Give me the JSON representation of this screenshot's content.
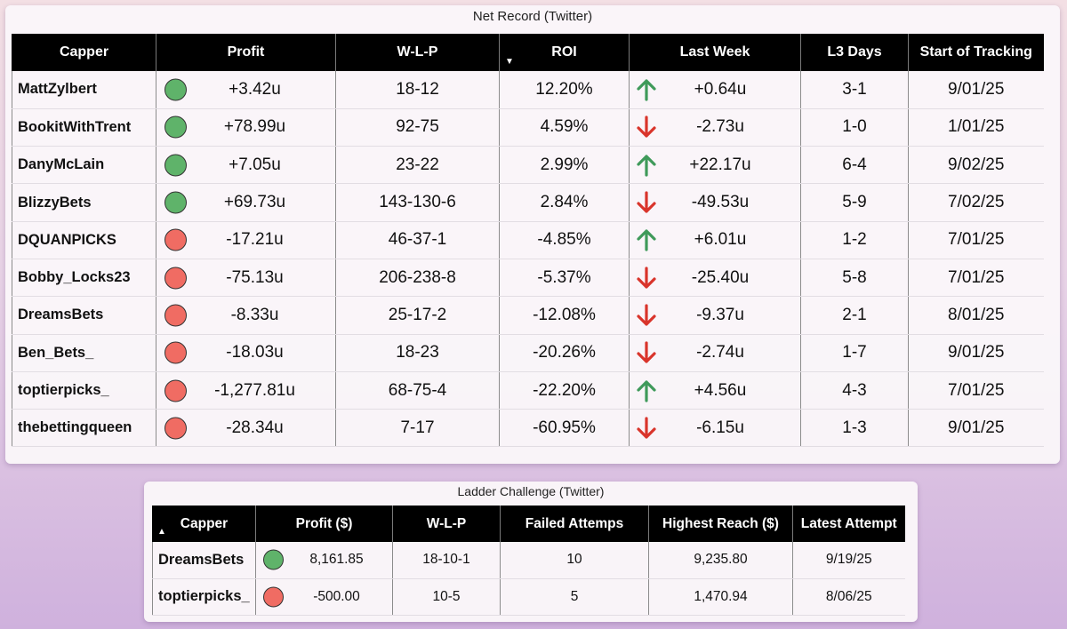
{
  "net_record": {
    "title": "Net Record (Twitter)",
    "headers": [
      "Capper",
      "Profit",
      "W-L-P",
      "ROI",
      "Last Week",
      "L3 Days",
      "Start of Tracking"
    ],
    "sort_indicator": "▼",
    "rows": [
      {
        "capper": "MattZylbert",
        "status": "green",
        "profit": "+3.42u",
        "wlp": "18-12",
        "roi": "12.20%",
        "trend": "up",
        "last_week": "+0.64u",
        "l3_days": "3-1",
        "start": "9/01/25"
      },
      {
        "capper": "BookitWithTrent",
        "status": "green",
        "profit": "+78.99u",
        "wlp": "92-75",
        "roi": "4.59%",
        "trend": "down",
        "last_week": "-2.73u",
        "l3_days": "1-0",
        "start": "1/01/25"
      },
      {
        "capper": "DanyMcLain",
        "status": "green",
        "profit": "+7.05u",
        "wlp": "23-22",
        "roi": "2.99%",
        "trend": "up",
        "last_week": "+22.17u",
        "l3_days": "6-4",
        "start": "9/02/25"
      },
      {
        "capper": "BlizzyBets",
        "status": "green",
        "profit": "+69.73u",
        "wlp": "143-130-6",
        "roi": "2.84%",
        "trend": "down",
        "last_week": "-49.53u",
        "l3_days": "5-9",
        "start": "7/02/25"
      },
      {
        "capper": "DQUANPICKS",
        "status": "red",
        "profit": "-17.21u",
        "wlp": "46-37-1",
        "roi": "-4.85%",
        "trend": "up",
        "last_week": "+6.01u",
        "l3_days": "1-2",
        "start": "7/01/25"
      },
      {
        "capper": "Bobby_Locks23",
        "status": "red",
        "profit": "-75.13u",
        "wlp": "206-238-8",
        "roi": "-5.37%",
        "trend": "down",
        "last_week": "-25.40u",
        "l3_days": "5-8",
        "start": "7/01/25"
      },
      {
        "capper": "DreamsBets",
        "status": "red",
        "profit": "-8.33u",
        "wlp": "25-17-2",
        "roi": "-12.08%",
        "trend": "down",
        "last_week": "-9.37u",
        "l3_days": "2-1",
        "start": "8/01/25"
      },
      {
        "capper": "Ben_Bets_",
        "status": "red",
        "profit": "-18.03u",
        "wlp": "18-23",
        "roi": "-20.26%",
        "trend": "down",
        "last_week": "-2.74u",
        "l3_days": "1-7",
        "start": "9/01/25"
      },
      {
        "capper": "toptierpicks_",
        "status": "red",
        "profit": "-1,277.81u",
        "wlp": "68-75-4",
        "roi": "-22.20%",
        "trend": "up",
        "last_week": "+4.56u",
        "l3_days": "4-3",
        "start": "7/01/25"
      },
      {
        "capper": "thebettingqueen",
        "status": "red",
        "profit": "-28.34u",
        "wlp": "7-17",
        "roi": "-60.95%",
        "trend": "down",
        "last_week": "-6.15u",
        "l3_days": "1-3",
        "start": "9/01/25"
      }
    ]
  },
  "ladder": {
    "title": "Ladder Challenge (Twitter)",
    "headers": [
      "Capper",
      "Profit ($)",
      "W-L-P",
      "Failed Attemps",
      "Highest Reach ($)",
      "Latest Attempt"
    ],
    "sort_indicator": "▲",
    "rows": [
      {
        "capper": "DreamsBets",
        "status": "green",
        "profit": "8,161.85",
        "wlp": "18-10-1",
        "failed": "10",
        "highest": "9,235.80",
        "latest": "9/19/25"
      },
      {
        "capper": "toptierpicks_",
        "status": "red",
        "profit": "-500.00",
        "wlp": "10-5",
        "failed": "5",
        "highest": "1,470.94",
        "latest": "8/06/25"
      }
    ]
  },
  "colors": {
    "status_green": "#5fb36a",
    "status_red": "#f06c63",
    "arrow_up": "#3f9a5a",
    "arrow_down": "#d9342b",
    "header_bg": "#000000"
  },
  "icons": {
    "up": "arrow-up-icon",
    "down": "arrow-down-icon",
    "green": "green-status-dot-icon",
    "red": "red-status-dot-icon"
  }
}
